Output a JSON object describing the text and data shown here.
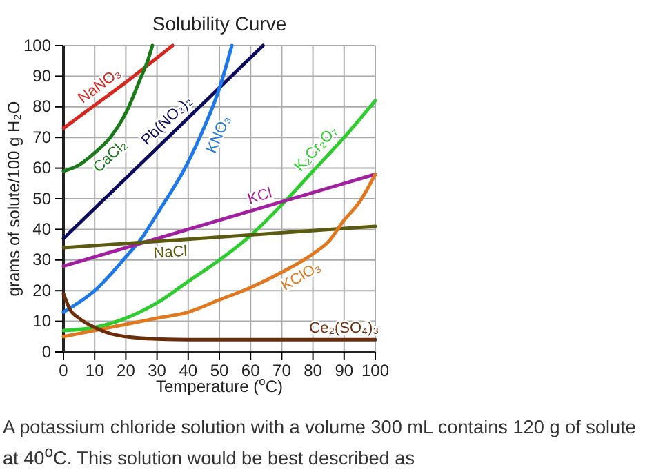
{
  "chart_data": {
    "type": "line",
    "title": "Solubility Curve",
    "xlabel": "Temperature ($^{o}$C)",
    "ylabel": "grams of solute/100 g H₂O",
    "xlim": [
      0,
      100
    ],
    "xticks": [
      0,
      10,
      20,
      30,
      40,
      50,
      60,
      70,
      80,
      90,
      100
    ],
    "ylim": [
      0,
      100
    ],
    "yticks": [
      0,
      10,
      20,
      30,
      40,
      50,
      60,
      70,
      80,
      90,
      100
    ],
    "grid": true,
    "legend": false,
    "marker": "none",
    "line_style": "solid",
    "series": [
      {
        "name": "NaNO₃",
        "color": "#d7261e",
        "x": [
          0,
          10,
          20,
          30,
          35
        ],
        "values": [
          73,
          80.5,
          88,
          96,
          100
        ]
      },
      {
        "name": "CaCl₂",
        "color": "#1a7a1a",
        "x": [
          0,
          5,
          10,
          15,
          20,
          25,
          27,
          28.5
        ],
        "values": [
          59,
          61,
          65,
          70,
          78,
          90,
          95,
          100
        ]
      },
      {
        "name": "Pb(NO₃)₂",
        "color": "#0d0d5e",
        "x": [
          0,
          64
        ],
        "values": [
          37,
          100
        ]
      },
      {
        "name": "KNO₃",
        "color": "#1f78e8",
        "x": [
          0,
          10,
          20,
          25,
          30,
          40,
          45,
          50,
          54
        ],
        "values": [
          13,
          20,
          31,
          37,
          45,
          62,
          73,
          86,
          100
        ]
      },
      {
        "name": "K₂Cr₂O₇",
        "color": "#2ecc2e",
        "x": [
          0,
          10,
          20,
          30,
          40,
          50,
          60,
          70,
          80,
          90,
          100
        ],
        "values": [
          7,
          8,
          11,
          16,
          23,
          30,
          38,
          48,
          59,
          70,
          82
        ]
      },
      {
        "name": "KCl",
        "color": "#a020a0",
        "x": [
          0,
          100
        ],
        "values": [
          28,
          58
        ]
      },
      {
        "name": "NaCl",
        "color": "#5a5a10",
        "x": [
          0,
          100
        ],
        "values": [
          34,
          41
        ]
      },
      {
        "name": "KClO₃",
        "color": "#e07820",
        "x": [
          0,
          10,
          20,
          30,
          40,
          50,
          60,
          70,
          80,
          85,
          90,
          95,
          100
        ],
        "values": [
          5,
          7,
          9,
          11,
          13,
          17,
          21,
          26,
          32,
          36,
          43,
          49,
          58
        ]
      },
      {
        "name": "Ce₂(SO₄)₃",
        "color": "#6b2d0a",
        "x": [
          0,
          2,
          5,
          10,
          15,
          20,
          30,
          40,
          100
        ],
        "values": [
          19,
          14,
          11,
          8,
          6,
          5,
          4.2,
          4,
          4
        ]
      }
    ],
    "annotations": [
      "A potassium chloride solution with a volume 300 mL contains 120 g of solute at 40$^{o}$C. This solution would be best described as"
    ]
  }
}
